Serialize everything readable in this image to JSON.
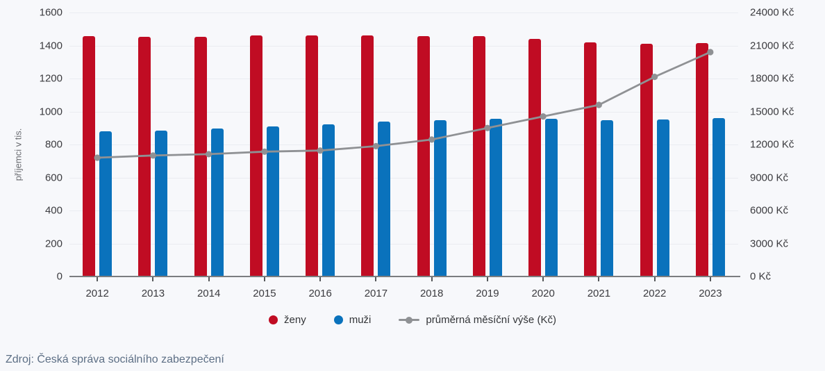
{
  "chart_data": {
    "type": "bar",
    "subtype": "grouped bars with secondary-axis line overlay",
    "title": "",
    "categories": [
      "2012",
      "2013",
      "2014",
      "2015",
      "2016",
      "2017",
      "2018",
      "2019",
      "2020",
      "2021",
      "2022",
      "2023"
    ],
    "series": [
      {
        "name": "ženy",
        "type": "bar",
        "axis": "left",
        "color": "#c00c23",
        "values": [
          1458,
          1451,
          1452,
          1462,
          1463,
          1463,
          1457,
          1456,
          1439,
          1421,
          1411,
          1413
        ]
      },
      {
        "name": "muži",
        "type": "bar",
        "axis": "left",
        "color": "#0a72bc",
        "values": [
          879,
          886,
          896,
          910,
          924,
          937,
          949,
          954,
          956,
          948,
          950,
          960
        ]
      },
      {
        "name": "průměrná měsíční výše (Kč)",
        "type": "line",
        "axis": "right",
        "color": "#8f9194",
        "values": [
          10800,
          11000,
          11120,
          11350,
          11450,
          11850,
          12450,
          13500,
          14550,
          15600,
          18150,
          20400
        ]
      }
    ],
    "left_axis": {
      "label": "příjemci v tis.",
      "min": 0,
      "max": 1600,
      "step": 200,
      "tick_labels": [
        "0",
        "200",
        "400",
        "600",
        "800",
        "1000",
        "1200",
        "1400",
        "1600"
      ]
    },
    "right_axis": {
      "label": "Kč",
      "min": 0,
      "max": 24000,
      "step": 3000,
      "tick_labels": [
        "0 Kč",
        "3000 Kč",
        "6000 Kč",
        "9000 Kč",
        "12000 Kč",
        "15000 Kč",
        "18000 Kč",
        "21000 Kč",
        "24000 Kč"
      ]
    },
    "grid": true,
    "legend_position": "bottom"
  },
  "legend": {
    "zeny_label": "ženy",
    "muzi_label": "muži",
    "line_label": "průměrná měsíční výše (Kč)"
  },
  "axis": {
    "y_left_title": "příjemci v tis."
  },
  "source_text": "Zdroj: Česká správa sociálního zabezpečení",
  "colors": {
    "bar_zeny": "#c00c23",
    "bar_muzi": "#0a72bc",
    "line": "#8f9194",
    "background": "#f7f8fb",
    "gridline": "#eaecf1",
    "axis_text": "#3b3b3f",
    "source_text_color": "#5d6f85"
  }
}
